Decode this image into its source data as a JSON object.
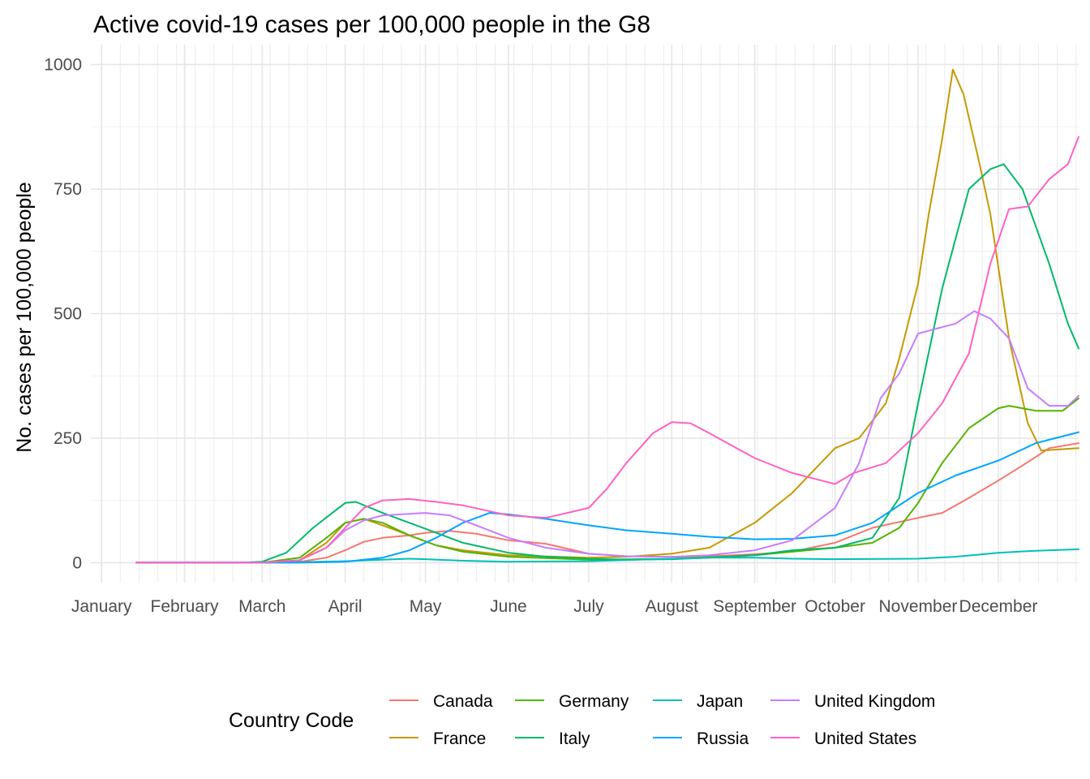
{
  "chart_data": {
    "type": "line",
    "title": "Active covid-19 cases per 100,000 people in the G8",
    "xlabel": "",
    "ylabel": "No. cases per 100,000 people",
    "x_axis": {
      "type": "date",
      "range": [
        "2019-12-28",
        "2020-12-31"
      ],
      "ticks": [
        {
          "date": "2020-01-01",
          "label": "January"
        },
        {
          "date": "2020-02-01",
          "label": "February"
        },
        {
          "date": "2020-03-01",
          "label": "March"
        },
        {
          "date": "2020-04-01",
          "label": "April"
        },
        {
          "date": "2020-05-01",
          "label": "May"
        },
        {
          "date": "2020-06-01",
          "label": "June"
        },
        {
          "date": "2020-07-01",
          "label": "July"
        },
        {
          "date": "2020-08-01",
          "label": "August"
        },
        {
          "date": "2020-09-01",
          "label": "September"
        },
        {
          "date": "2020-10-01",
          "label": "October"
        },
        {
          "date": "2020-11-01",
          "label": "November"
        },
        {
          "date": "2020-12-01",
          "label": "December"
        }
      ]
    },
    "ylim": [
      -40,
      1040
    ],
    "y_ticks": [
      0,
      250,
      500,
      750,
      1000
    ],
    "y_tick_labels": [
      "0",
      "250",
      "500",
      "750",
      "1000"
    ],
    "grid": true,
    "legend": {
      "title": "Country Code",
      "position": "bottom",
      "columns": 4
    },
    "series": [
      {
        "name": "Canada",
        "color": "#F8766D",
        "points": [
          [
            "2020-01-14",
            0
          ],
          [
            "2020-03-01",
            0
          ],
          [
            "2020-03-15",
            2
          ],
          [
            "2020-03-25",
            10
          ],
          [
            "2020-04-01",
            25
          ],
          [
            "2020-04-08",
            42
          ],
          [
            "2020-04-15",
            50
          ],
          [
            "2020-04-25",
            55
          ],
          [
            "2020-05-01",
            60
          ],
          [
            "2020-05-10",
            64
          ],
          [
            "2020-05-20",
            58
          ],
          [
            "2020-06-01",
            45
          ],
          [
            "2020-06-15",
            38
          ],
          [
            "2020-07-01",
            18
          ],
          [
            "2020-07-15",
            13
          ],
          [
            "2020-08-01",
            12
          ],
          [
            "2020-08-15",
            13
          ],
          [
            "2020-09-01",
            17
          ],
          [
            "2020-09-15",
            22
          ],
          [
            "2020-10-01",
            40
          ],
          [
            "2020-10-15",
            70
          ],
          [
            "2020-11-01",
            90
          ],
          [
            "2020-11-10",
            100
          ],
          [
            "2020-11-20",
            130
          ],
          [
            "2020-12-01",
            165
          ],
          [
            "2020-12-10",
            195
          ],
          [
            "2020-12-20",
            230
          ],
          [
            "2020-12-31",
            240
          ]
        ]
      },
      {
        "name": "France",
        "color": "#C49A00",
        "points": [
          [
            "2020-01-14",
            0
          ],
          [
            "2020-03-01",
            0
          ],
          [
            "2020-03-15",
            5
          ],
          [
            "2020-03-25",
            40
          ],
          [
            "2020-04-01",
            80
          ],
          [
            "2020-04-08",
            88
          ],
          [
            "2020-04-15",
            75
          ],
          [
            "2020-04-25",
            55
          ],
          [
            "2020-05-05",
            35
          ],
          [
            "2020-05-15",
            25
          ],
          [
            "2020-06-01",
            15
          ],
          [
            "2020-07-01",
            10
          ],
          [
            "2020-07-15",
            12
          ],
          [
            "2020-08-01",
            18
          ],
          [
            "2020-08-15",
            30
          ],
          [
            "2020-09-01",
            80
          ],
          [
            "2020-09-15",
            140
          ],
          [
            "2020-10-01",
            230
          ],
          [
            "2020-10-10",
            250
          ],
          [
            "2020-10-20",
            320
          ],
          [
            "2020-10-25",
            410
          ],
          [
            "2020-11-01",
            560
          ],
          [
            "2020-11-05",
            700
          ],
          [
            "2020-11-10",
            850
          ],
          [
            "2020-11-14",
            990
          ],
          [
            "2020-11-18",
            940
          ],
          [
            "2020-11-24",
            800
          ],
          [
            "2020-11-28",
            700
          ],
          [
            "2020-12-05",
            450
          ],
          [
            "2020-12-12",
            280
          ],
          [
            "2020-12-17",
            225
          ],
          [
            "2020-12-31",
            230
          ]
        ]
      },
      {
        "name": "Germany",
        "color": "#53B400",
        "points": [
          [
            "2020-01-14",
            0
          ],
          [
            "2020-03-01",
            0
          ],
          [
            "2020-03-15",
            10
          ],
          [
            "2020-03-25",
            50
          ],
          [
            "2020-04-01",
            80
          ],
          [
            "2020-04-08",
            88
          ],
          [
            "2020-04-15",
            80
          ],
          [
            "2020-04-25",
            55
          ],
          [
            "2020-05-05",
            35
          ],
          [
            "2020-05-15",
            22
          ],
          [
            "2020-06-01",
            12
          ],
          [
            "2020-07-01",
            6
          ],
          [
            "2020-08-01",
            8
          ],
          [
            "2020-09-01",
            15
          ],
          [
            "2020-10-01",
            30
          ],
          [
            "2020-10-15",
            40
          ],
          [
            "2020-10-25",
            70
          ],
          [
            "2020-11-01",
            120
          ],
          [
            "2020-11-10",
            200
          ],
          [
            "2020-11-20",
            270
          ],
          [
            "2020-12-01",
            310
          ],
          [
            "2020-12-05",
            315
          ],
          [
            "2020-12-15",
            305
          ],
          [
            "2020-12-25",
            305
          ],
          [
            "2020-12-31",
            330
          ]
        ]
      },
      {
        "name": "Italy",
        "color": "#00B86B",
        "points": [
          [
            "2020-01-14",
            0
          ],
          [
            "2020-02-22",
            0
          ],
          [
            "2020-03-01",
            2
          ],
          [
            "2020-03-10",
            20
          ],
          [
            "2020-03-20",
            70
          ],
          [
            "2020-04-01",
            120
          ],
          [
            "2020-04-05",
            122
          ],
          [
            "2020-04-15",
            100
          ],
          [
            "2020-04-25",
            80
          ],
          [
            "2020-05-05",
            60
          ],
          [
            "2020-05-15",
            40
          ],
          [
            "2020-06-01",
            20
          ],
          [
            "2020-06-15",
            12
          ],
          [
            "2020-07-01",
            8
          ],
          [
            "2020-07-15",
            6
          ],
          [
            "2020-08-01",
            7
          ],
          [
            "2020-08-15",
            10
          ],
          [
            "2020-09-01",
            15
          ],
          [
            "2020-09-15",
            25
          ],
          [
            "2020-10-01",
            30
          ],
          [
            "2020-10-15",
            50
          ],
          [
            "2020-10-25",
            130
          ],
          [
            "2020-11-01",
            320
          ],
          [
            "2020-11-10",
            550
          ],
          [
            "2020-11-20",
            750
          ],
          [
            "2020-11-28",
            790
          ],
          [
            "2020-12-03",
            800
          ],
          [
            "2020-12-10",
            750
          ],
          [
            "2020-12-20",
            600
          ],
          [
            "2020-12-27",
            480
          ],
          [
            "2020-12-31",
            430
          ]
        ]
      },
      {
        "name": "Japan",
        "color": "#00C0B8",
        "points": [
          [
            "2020-01-14",
            0
          ],
          [
            "2020-03-01",
            0
          ],
          [
            "2020-03-15",
            1
          ],
          [
            "2020-04-01",
            3
          ],
          [
            "2020-04-15",
            6
          ],
          [
            "2020-04-25",
            8
          ],
          [
            "2020-05-01",
            7
          ],
          [
            "2020-05-15",
            4
          ],
          [
            "2020-06-01",
            2
          ],
          [
            "2020-07-01",
            3
          ],
          [
            "2020-08-01",
            8
          ],
          [
            "2020-08-15",
            10
          ],
          [
            "2020-09-01",
            10
          ],
          [
            "2020-09-15",
            8
          ],
          [
            "2020-10-01",
            7
          ],
          [
            "2020-11-01",
            8
          ],
          [
            "2020-11-15",
            12
          ],
          [
            "2020-12-01",
            20
          ],
          [
            "2020-12-15",
            24
          ],
          [
            "2020-12-31",
            27
          ]
        ]
      },
      {
        "name": "Russia",
        "color": "#00A5FF",
        "points": [
          [
            "2020-01-14",
            0
          ],
          [
            "2020-03-15",
            0
          ],
          [
            "2020-04-01",
            2
          ],
          [
            "2020-04-15",
            10
          ],
          [
            "2020-04-25",
            25
          ],
          [
            "2020-05-05",
            50
          ],
          [
            "2020-05-15",
            80
          ],
          [
            "2020-05-25",
            100
          ],
          [
            "2020-06-01",
            97
          ],
          [
            "2020-06-15",
            88
          ],
          [
            "2020-07-01",
            75
          ],
          [
            "2020-07-15",
            65
          ],
          [
            "2020-08-01",
            58
          ],
          [
            "2020-08-15",
            52
          ],
          [
            "2020-09-01",
            47
          ],
          [
            "2020-09-15",
            48
          ],
          [
            "2020-10-01",
            55
          ],
          [
            "2020-10-15",
            80
          ],
          [
            "2020-11-01",
            140
          ],
          [
            "2020-11-15",
            175
          ],
          [
            "2020-12-01",
            205
          ],
          [
            "2020-12-15",
            240
          ],
          [
            "2020-12-31",
            262
          ]
        ]
      },
      {
        "name": "United Kingdom",
        "color": "#C77CFF",
        "points": [
          [
            "2020-01-14",
            0
          ],
          [
            "2020-03-01",
            0
          ],
          [
            "2020-03-15",
            5
          ],
          [
            "2020-03-25",
            30
          ],
          [
            "2020-04-01",
            65
          ],
          [
            "2020-04-08",
            85
          ],
          [
            "2020-04-15",
            95
          ],
          [
            "2020-05-01",
            100
          ],
          [
            "2020-05-10",
            95
          ],
          [
            "2020-05-20",
            75
          ],
          [
            "2020-06-01",
            50
          ],
          [
            "2020-06-15",
            30
          ],
          [
            "2020-07-01",
            18
          ],
          [
            "2020-07-15",
            13
          ],
          [
            "2020-08-01",
            12
          ],
          [
            "2020-08-15",
            15
          ],
          [
            "2020-09-01",
            25
          ],
          [
            "2020-09-15",
            45
          ],
          [
            "2020-10-01",
            110
          ],
          [
            "2020-10-10",
            200
          ],
          [
            "2020-10-18",
            330
          ],
          [
            "2020-10-25",
            380
          ],
          [
            "2020-11-01",
            460
          ],
          [
            "2020-11-08",
            470
          ],
          [
            "2020-11-15",
            480
          ],
          [
            "2020-11-22",
            505
          ],
          [
            "2020-11-28",
            490
          ],
          [
            "2020-12-05",
            450
          ],
          [
            "2020-12-12",
            350
          ],
          [
            "2020-12-20",
            315
          ],
          [
            "2020-12-27",
            315
          ],
          [
            "2020-12-31",
            335
          ]
        ]
      },
      {
        "name": "United States",
        "color": "#FF61C3",
        "points": [
          [
            "2020-01-14",
            0
          ],
          [
            "2020-03-01",
            0
          ],
          [
            "2020-03-15",
            5
          ],
          [
            "2020-03-25",
            30
          ],
          [
            "2020-04-01",
            70
          ],
          [
            "2020-04-08",
            110
          ],
          [
            "2020-04-15",
            125
          ],
          [
            "2020-04-25",
            128
          ],
          [
            "2020-05-05",
            122
          ],
          [
            "2020-05-15",
            115
          ],
          [
            "2020-06-01",
            95
          ],
          [
            "2020-06-15",
            90
          ],
          [
            "2020-07-01",
            110
          ],
          [
            "2020-07-08",
            150
          ],
          [
            "2020-07-15",
            200
          ],
          [
            "2020-07-25",
            260
          ],
          [
            "2020-08-01",
            282
          ],
          [
            "2020-08-08",
            280
          ],
          [
            "2020-08-15",
            260
          ],
          [
            "2020-09-01",
            210
          ],
          [
            "2020-09-15",
            180
          ],
          [
            "2020-10-01",
            158
          ],
          [
            "2020-10-08",
            180
          ],
          [
            "2020-10-20",
            200
          ],
          [
            "2020-11-01",
            260
          ],
          [
            "2020-11-10",
            320
          ],
          [
            "2020-11-20",
            420
          ],
          [
            "2020-11-28",
            600
          ],
          [
            "2020-12-05",
            710
          ],
          [
            "2020-12-12",
            715
          ],
          [
            "2020-12-20",
            770
          ],
          [
            "2020-12-27",
            800
          ],
          [
            "2020-12-31",
            855
          ]
        ]
      }
    ]
  }
}
